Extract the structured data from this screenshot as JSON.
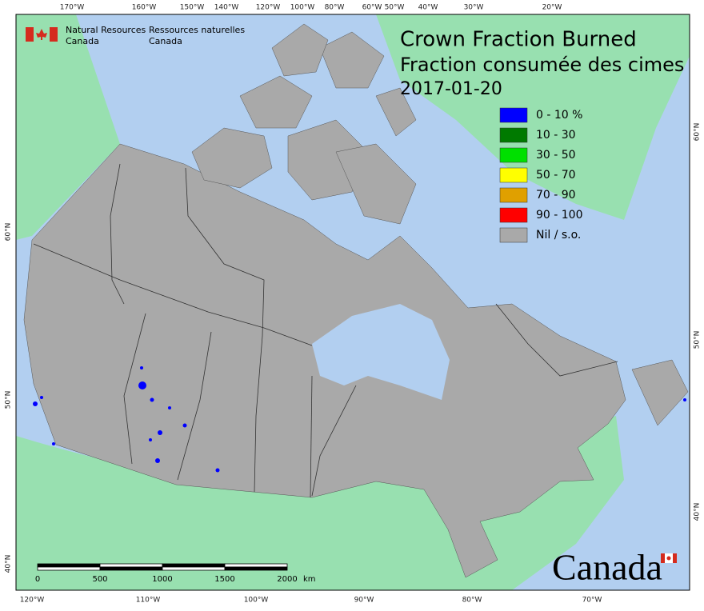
{
  "header": {
    "agency_en": [
      "Natural Resources",
      "Canada"
    ],
    "agency_fr": [
      "Ressources naturelles",
      "Canada"
    ]
  },
  "title": [
    "Crown Fraction Burned",
    "Fraction consumée des cimes",
    "2017-01-20"
  ],
  "legend": [
    {
      "label": "0 - 10 %",
      "color": "#0000ff"
    },
    {
      "label": "10 - 30",
      "color": "#007a00"
    },
    {
      "label": "30 - 50",
      "color": "#00e000"
    },
    {
      "label": "50 - 70",
      "color": "#ffff00"
    },
    {
      "label": "70 - 90",
      "color": "#e0a000"
    },
    {
      "label": "90 - 100",
      "color": "#ff0000"
    },
    {
      "label": "Nil / s.o.",
      "color": "#a9a9a9"
    }
  ],
  "scale_bar": {
    "labels": [
      "0",
      "500",
      "1000",
      "1500",
      "2000"
    ],
    "unit": "km"
  },
  "graticule": {
    "top": [
      "170°W",
      "160°W",
      "150°W",
      "140°W",
      "120°W",
      "100°W",
      "80°W",
      "60°W",
      "50°W",
      "40°W",
      "30°W",
      "20°W"
    ],
    "bottom": [
      "120°W",
      "110°W",
      "100°W",
      "90°W",
      "80°W",
      "70°W"
    ],
    "left": [
      "60°N",
      "50°N",
      "40°N"
    ],
    "right": [
      "60°N",
      "50°N",
      "40°N"
    ]
  },
  "wordmark": "Canada"
}
